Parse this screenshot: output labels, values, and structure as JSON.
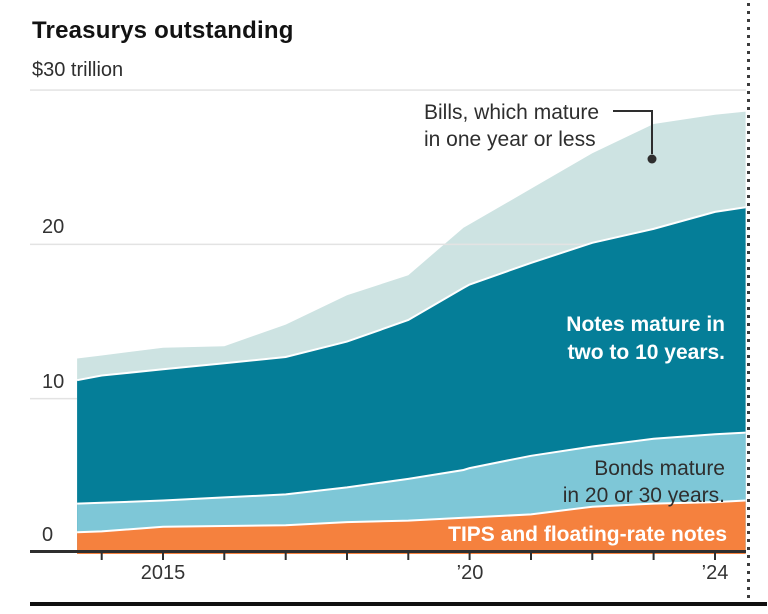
{
  "header": {
    "title": "Treasurys outstanding",
    "unit_label": "$30 trillion"
  },
  "labels": {
    "bills": {
      "line1": "Bills, which mature",
      "line2": "in one year or less"
    },
    "notes": {
      "line1": "Notes mature in",
      "line2": "two to 10 years."
    },
    "bonds": {
      "line1": "Bonds mature",
      "line2": "in 20 or 30 years."
    },
    "tips": {
      "label": "TIPS and floating-rate notes"
    }
  },
  "colors": {
    "bills_area": "#cde3e2",
    "notes_area": "#057e98",
    "bonds_area": "#7ec7d7",
    "tips_area": "#f5813e",
    "gridline": "#e3e3e3",
    "axis": "#2e2e2e",
    "annotation_line": "#2e2e2e",
    "boundary_stroke": "#ffffff"
  },
  "chart_data": {
    "type": "area",
    "stacked": true,
    "title": "Treasurys outstanding",
    "units": "trillions of U.S. dollars",
    "ylim": [
      0,
      30
    ],
    "grid": "horizontal",
    "x": [
      2013.6,
      2014,
      2015,
      2016,
      2017,
      2018,
      2019,
      2019.9,
      2020,
      2021,
      2022,
      2023,
      2024,
      2024.5
    ],
    "x_tick_marks": [
      2014,
      2015,
      2016,
      2017,
      2018,
      2019,
      2020,
      2021,
      2022,
      2023,
      2024
    ],
    "x_tick_labels": [
      {
        "year": 2015,
        "label": "2015"
      },
      {
        "year": 2020,
        "label": "’20"
      },
      {
        "year": 2024,
        "label": "’24"
      }
    ],
    "y_tick_labels": [
      {
        "value": 0,
        "label": "0"
      },
      {
        "value": 10,
        "label": "10"
      },
      {
        "value": 20,
        "label": "20"
      }
    ],
    "y_gridline_values": [
      10,
      20,
      30
    ],
    "series": [
      {
        "name": "TIPS and floating-rate notes",
        "color": "#f5813e",
        "values": [
          1.35,
          1.4,
          1.7,
          1.75,
          1.8,
          2.0,
          2.1,
          2.28,
          2.3,
          2.5,
          3.0,
          3.2,
          3.3,
          3.4
        ]
      },
      {
        "name": "Bonds mature in 20 or 30 years",
        "color": "#7ec7d7",
        "values": [
          1.85,
          1.85,
          1.7,
          1.85,
          2.0,
          2.25,
          2.7,
          3.1,
          3.2,
          3.8,
          3.9,
          4.2,
          4.4,
          4.4
        ]
      },
      {
        "name": "Notes mature in two to 10 years",
        "color": "#057e98",
        "values": [
          8.0,
          8.25,
          8.5,
          8.7,
          8.9,
          9.45,
          10.3,
          11.8,
          11.9,
          12.5,
          13.2,
          13.6,
          14.4,
          14.6
        ]
      },
      {
        "name": "Bills, which mature in one year or less",
        "color": "#cde3e2",
        "values": [
          1.4,
          1.3,
          1.4,
          1.1,
          2.1,
          3.0,
          2.9,
          3.9,
          3.9,
          4.8,
          5.8,
          6.8,
          6.3,
          6.2
        ]
      }
    ]
  }
}
